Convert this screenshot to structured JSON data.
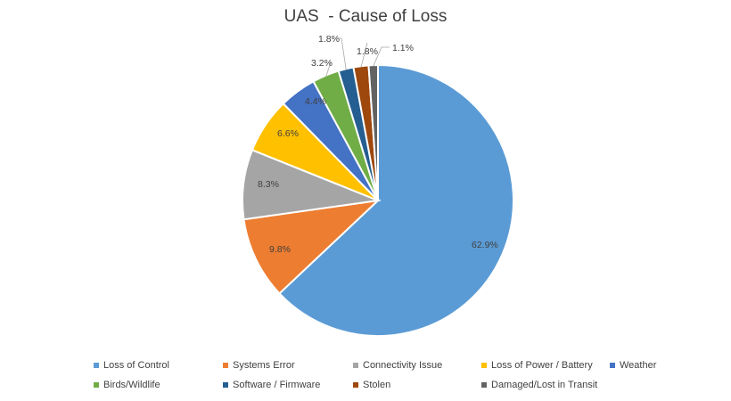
{
  "chart_data": {
    "type": "pie",
    "title": "UAS  - Cause of Loss",
    "legend_position": "bottom",
    "slices": [
      {
        "name": "Loss of Control",
        "value": 62.9,
        "label": "62.9%",
        "color": "#5B9BD5"
      },
      {
        "name": "Systems Error",
        "value": 9.8,
        "label": "9.8%",
        "color": "#ED7D31"
      },
      {
        "name": "Connectivity Issue",
        "value": 8.3,
        "label": "8.3%",
        "color": "#A5A5A5"
      },
      {
        "name": "Loss of Power / Battery",
        "value": 6.6,
        "label": "6.6%",
        "color": "#FFC000"
      },
      {
        "name": "Weather",
        "value": 4.4,
        "label": "4.4%",
        "color": "#4472C4"
      },
      {
        "name": "Birds/Wildlife",
        "value": 3.2,
        "label": "3.2%",
        "color": "#70AD47"
      },
      {
        "name": "Software / Firmware",
        "value": 1.8,
        "label": "1.8%",
        "color": "#255E91"
      },
      {
        "name": "Stolen",
        "value": 1.8,
        "label": "1.8%",
        "color": "#9E480E"
      },
      {
        "name": "Damaged/Lost in Transit",
        "value": 1.1,
        "label": "1.1%",
        "color": "#636363"
      }
    ]
  }
}
